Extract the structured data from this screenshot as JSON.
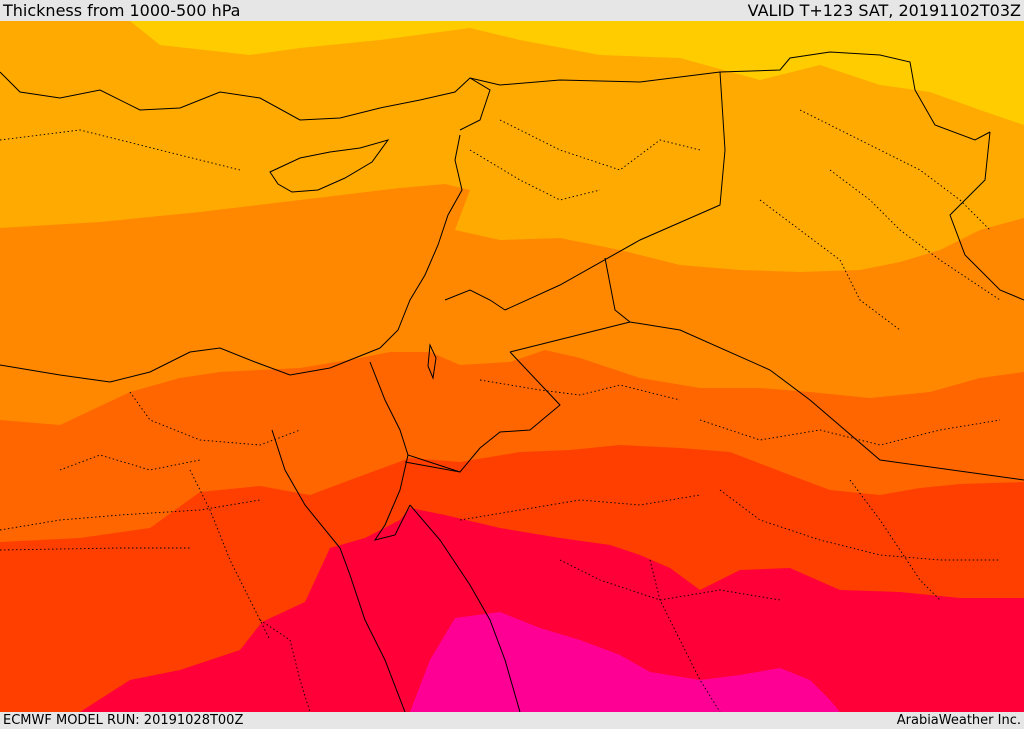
{
  "header": {
    "title": "Thickness from 1000-500 hPa",
    "valid": "VALID T+123 SAT, 20191102T03Z"
  },
  "footer": {
    "model_run": "ECMWF MODEL RUN: 20191028T00Z",
    "credit": "ArabiaWeather Inc."
  },
  "map": {
    "field": "1000-500 hPa thickness",
    "region": "Eastern Mediterranean, Levant, Egypt and northern Saudi Arabia",
    "bands": [
      {
        "name": "band-yellow",
        "color": "#ffcc00"
      },
      {
        "name": "band-light-orange",
        "color": "#ffaa00"
      },
      {
        "name": "band-orange",
        "color": "#ff8800"
      },
      {
        "name": "band-dark-orange",
        "color": "#ff6600"
      },
      {
        "name": "band-red-orange",
        "color": "#ff3f00"
      },
      {
        "name": "band-crimson",
        "color": "#ff0038"
      },
      {
        "name": "band-magenta",
        "color": "#ff0095"
      }
    ],
    "line_colors": {
      "border": "#000000"
    }
  }
}
